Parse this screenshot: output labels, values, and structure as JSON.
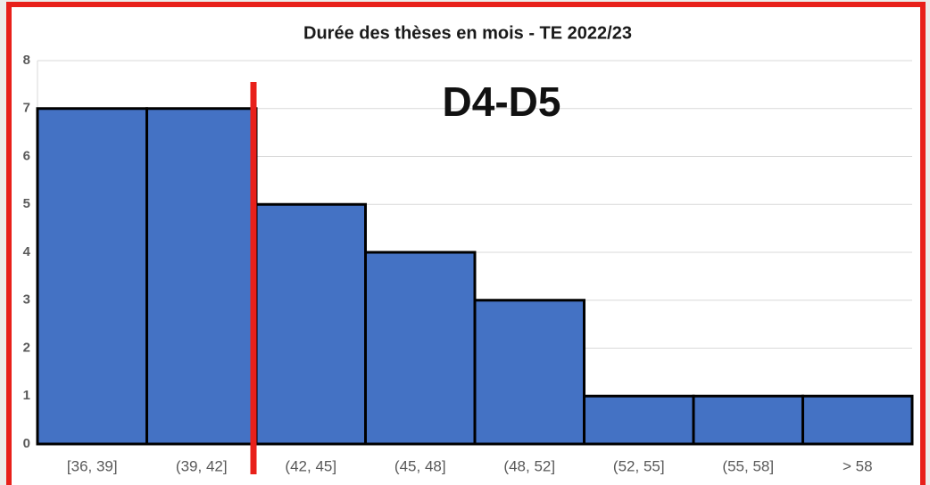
{
  "chart_data": {
    "type": "bar",
    "title": "Durée des thèses en mois  - TE 2022/23",
    "categories": [
      "[36, 39]",
      "(39, 42]",
      "(42, 45]",
      "(45, 48]",
      "(48, 52]",
      "(52, 55]",
      "(55, 58]",
      "> 58"
    ],
    "values": [
      7,
      7,
      5,
      4,
      3,
      1,
      1,
      1
    ],
    "color": "#4472c4",
    "ylim": [
      0,
      8
    ],
    "yticks": [
      0,
      1,
      2,
      3,
      4,
      5,
      6,
      7,
      8
    ],
    "grid": true,
    "annotation": "D4-D5"
  }
}
